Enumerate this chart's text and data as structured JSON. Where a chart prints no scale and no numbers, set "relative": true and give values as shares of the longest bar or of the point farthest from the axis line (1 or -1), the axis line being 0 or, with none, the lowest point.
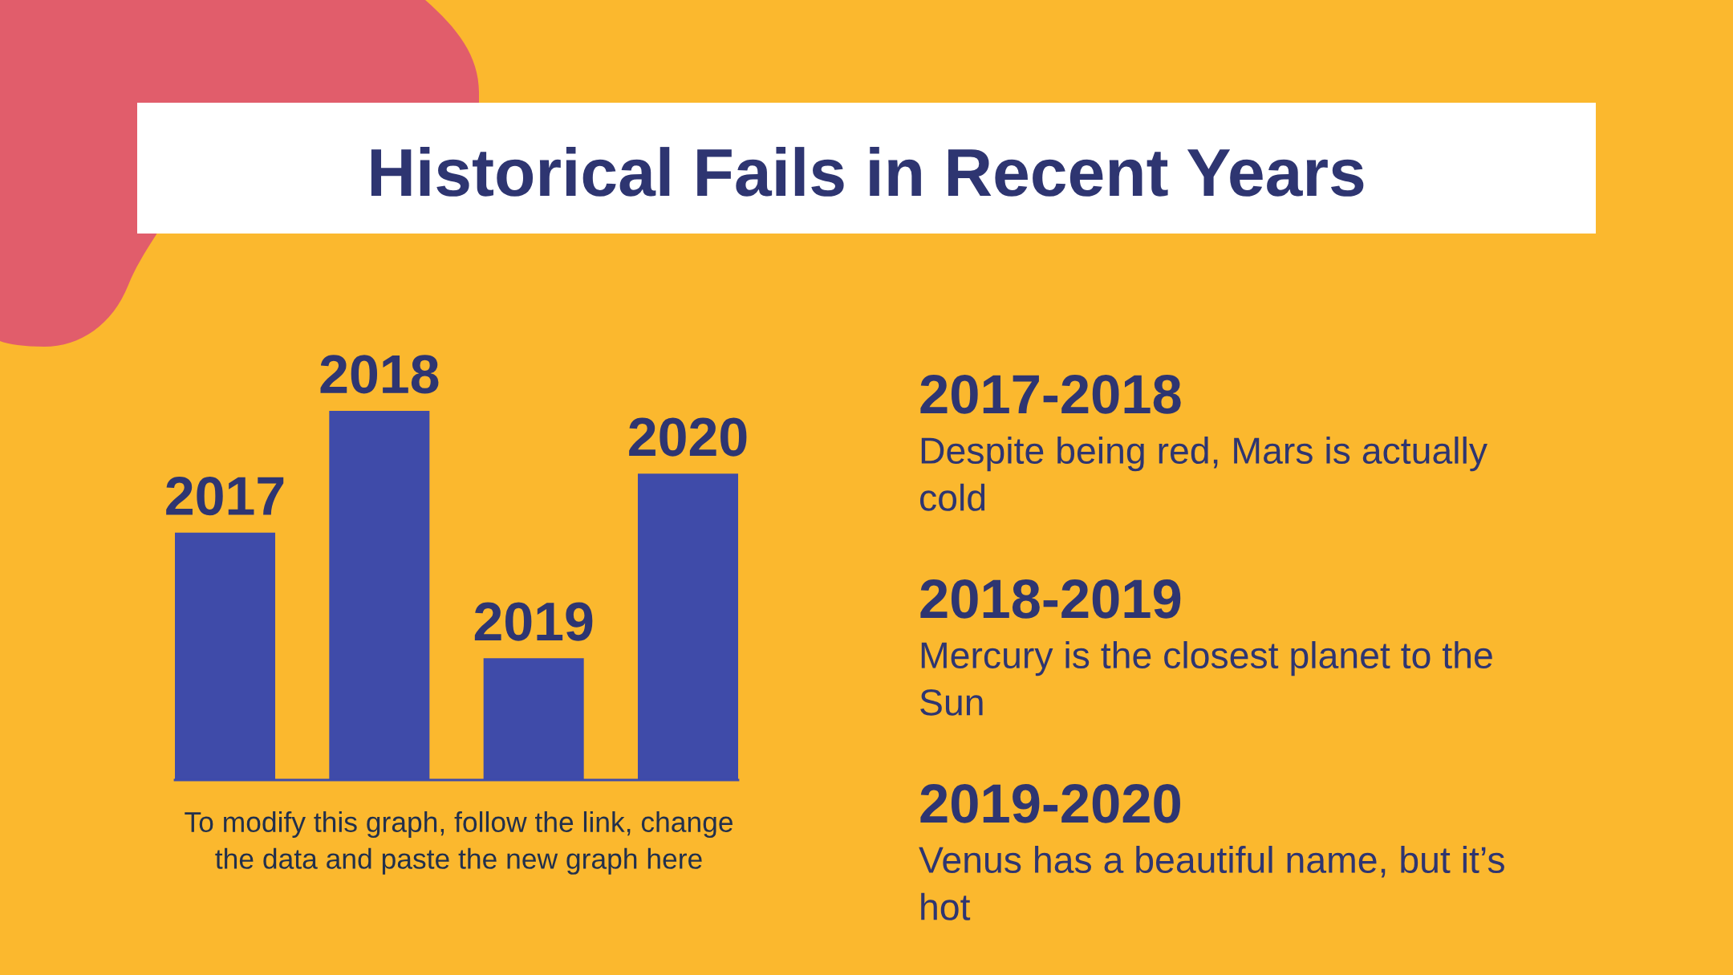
{
  "chart_data": [
    {
      "type": "bar",
      "title": "Historical Fails in Recent Years",
      "categories": [
        "2017",
        "2018",
        "2019",
        "2020"
      ],
      "values": [
        0.67,
        1,
        0.33,
        0.83
      ],
      "relative": true,
      "color": "#3f4ba9",
      "annotations": [
        "To modify this graph, follow the link, change the data and paste the new graph here"
      ]
    },
    {
      "type": "other",
      "annotations": [
        "2017-2018",
        "Despite being red, Mars is actually cold",
        "2018-2019",
        "Mercury is the closest planet to the Sun",
        "2019-2020",
        "Venus has a beautiful name, but it’s hot"
      ]
    }
  ]
}
